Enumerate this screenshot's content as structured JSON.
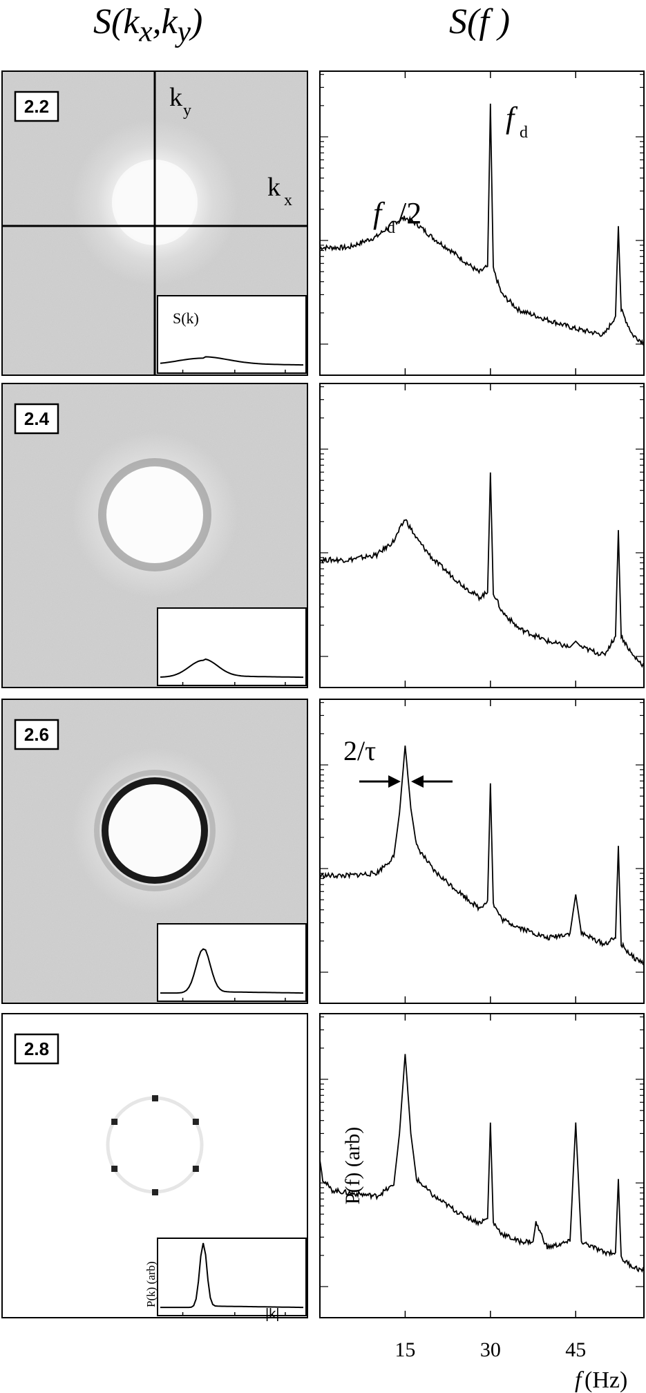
{
  "headers": {
    "left_html": "S(k<sub>x</sub>,k<sub>y</sub>)",
    "left_text": "S(kx,ky)",
    "right_html": "S(f )",
    "right_text": "S(f )"
  },
  "left_panels": [
    {
      "param": "2.2",
      "ring": "none"
    },
    {
      "param": "2.4",
      "ring": "weak"
    },
    {
      "param": "2.6",
      "ring": "strong"
    },
    {
      "param": "2.8",
      "ring": "spots"
    }
  ],
  "left_annotations": {
    "ky_label": "ky",
    "kx_label": "kx",
    "inset1_label": "S(k)",
    "inset4_ylabel": "P(k) (arb)",
    "xaxis_label": "|k|"
  },
  "right_annotations": {
    "fd_label": "fd",
    "fd_half_label": "fd/2",
    "width_label": "2/τ",
    "ylabel": "P(f) (arb)",
    "xlabel": "f (Hz)"
  },
  "chart_data": [
    {
      "type": "line",
      "title": "S(f)",
      "panel": "2.2",
      "xlim": [
        0,
        57
      ],
      "xticks": [
        15,
        30,
        45
      ],
      "yscale": "log",
      "x": [
        0,
        5,
        10,
        13,
        15,
        17,
        20,
        23,
        26,
        28,
        29.5,
        30,
        30.5,
        32,
        35,
        40,
        45,
        50,
        52,
        52.5,
        53,
        55,
        57
      ],
      "y": [
        1,
        1,
        1.5,
        2.5,
        3.0,
        2.4,
        1.4,
        0.9,
        0.55,
        0.4,
        0.5,
        200,
        0.45,
        0.18,
        0.1,
        0.07,
        0.05,
        0.04,
        0.08,
        2.2,
        0.1,
        0.04,
        0.03
      ],
      "annotations": [
        "fd",
        "fd/2"
      ]
    },
    {
      "type": "line",
      "title": "S(f)",
      "panel": "2.4",
      "xlim": [
        0,
        57
      ],
      "xticks": [
        15,
        30,
        45
      ],
      "yscale": "log",
      "x": [
        0,
        5,
        10,
        13,
        15,
        17,
        20,
        25,
        28,
        29.5,
        30,
        30.5,
        32,
        35,
        40,
        44,
        45,
        46,
        50,
        52,
        52.5,
        53,
        55,
        57
      ],
      "y": [
        1,
        1,
        1.2,
        2,
        4.5,
        2.2,
        1.0,
        0.4,
        0.25,
        0.3,
        25,
        0.3,
        0.15,
        0.08,
        0.05,
        0.04,
        0.05,
        0.04,
        0.03,
        0.06,
        3,
        0.06,
        0.03,
        0.02
      ]
    },
    {
      "type": "line",
      "title": "S(f)",
      "panel": "2.6",
      "xlim": [
        0,
        57
      ],
      "xticks": [
        15,
        30,
        45
      ],
      "yscale": "log",
      "x": [
        0,
        5,
        10,
        13,
        14,
        15,
        16,
        17,
        20,
        25,
        28,
        29.5,
        30,
        30.5,
        32,
        35,
        40,
        44,
        45,
        46,
        50,
        52,
        52.5,
        53,
        55,
        57
      ],
      "y": [
        1,
        1,
        1.1,
        2,
        10,
        120,
        12,
        3,
        1.2,
        0.5,
        0.3,
        0.4,
        30,
        0.35,
        0.2,
        0.15,
        0.1,
        0.12,
        0.5,
        0.12,
        0.08,
        0.1,
        3,
        0.08,
        0.05,
        0.04
      ]
    },
    {
      "type": "line",
      "title": "S(f)",
      "panel": "2.8",
      "xlim": [
        0,
        57
      ],
      "xticks": [
        15,
        30,
        45
      ],
      "yscale": "log",
      "x": [
        0,
        0.5,
        2,
        5,
        10,
        13,
        14,
        15,
        16,
        17,
        20,
        25,
        28,
        29.5,
        30,
        30.5,
        32,
        35,
        37.5,
        38,
        40,
        44,
        45,
        46,
        50,
        52,
        52.5,
        53,
        55,
        57
      ],
      "y": [
        3,
        1.5,
        1,
        0.9,
        0.8,
        1.2,
        8,
        150,
        8,
        1.5,
        0.8,
        0.4,
        0.3,
        0.35,
        12,
        0.3,
        0.2,
        0.15,
        0.15,
        0.3,
        0.12,
        0.15,
        12,
        0.15,
        0.1,
        0.1,
        1.5,
        0.08,
        0.06,
        0.05
      ],
      "ylabel": "P(f) (arb)",
      "xlabel": "f (Hz)"
    }
  ]
}
